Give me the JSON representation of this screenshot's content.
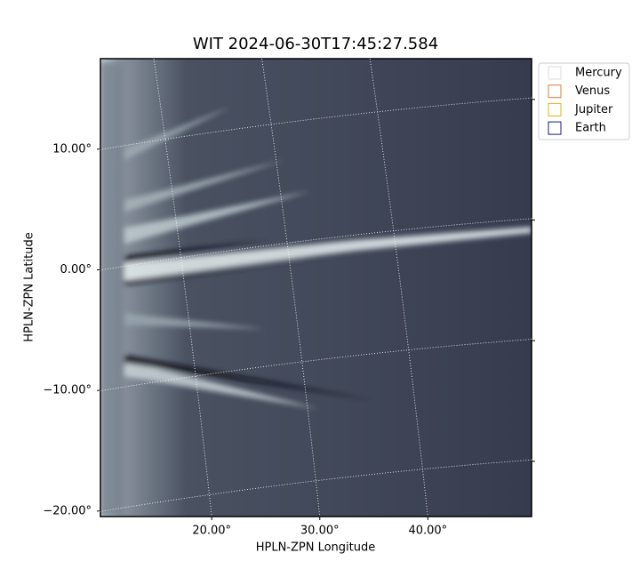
{
  "chart_data": {
    "type": "image",
    "title": "WIT 2024-06-30T17:45:27.584",
    "x_label": "HPLN-ZPN Longitude",
    "y_label": "HPLN-ZPN Latitude",
    "xlim": [
      9.7,
      49.6
    ],
    "ylim": [
      -20.45,
      17.5
    ],
    "xticks": [
      {
        "value": 20,
        "label": "20.00°"
      },
      {
        "value": 30,
        "label": "30.00°"
      },
      {
        "value": 40,
        "label": "40.00°"
      }
    ],
    "yticks": [
      {
        "value": 10,
        "label": "10.00°"
      },
      {
        "value": 0,
        "label": "0.00°"
      },
      {
        "value": -10,
        "label": "−10.00°"
      },
      {
        "value": -20,
        "label": "−20.00°"
      }
    ],
    "grid": true,
    "legend": "upper right",
    "legend_items": [
      {
        "name": "Mercury",
        "color": "#dddddd"
      },
      {
        "name": "Venus",
        "color": "#e07b39"
      },
      {
        "name": "Jupiter",
        "color": "#e8b010"
      },
      {
        "name": "Earth",
        "color": "#1a1a80"
      }
    ]
  }
}
